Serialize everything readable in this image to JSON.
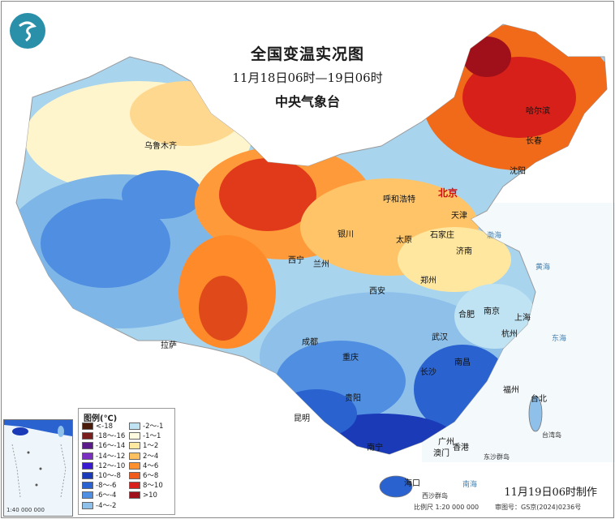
{
  "title": {
    "main": "全国变温实况图",
    "period": "11月18日06时—19日06时",
    "agency": "中央气象台"
  },
  "legend": {
    "title": "图例(℃)",
    "items": [
      {
        "label": "<-18",
        "color": "#4a1a0a"
      },
      {
        "label": "-18～-16",
        "color": "#7a1e1e"
      },
      {
        "label": "-16～-14",
        "color": "#5b1a8a"
      },
      {
        "label": "-14～-12",
        "color": "#7a2fc0"
      },
      {
        "label": "-12～-10",
        "color": "#3a1ad0"
      },
      {
        "label": "-10～-8",
        "color": "#1a3ab8"
      },
      {
        "label": "-8～-6",
        "color": "#2a62d0"
      },
      {
        "label": "-6～-4",
        "color": "#4f8ee0"
      },
      {
        "label": "-4～-2",
        "color": "#8ec0ea"
      },
      {
        "label": "-2～-1",
        "color": "#bfe3f2"
      },
      {
        "label": "-1～1",
        "color": "#fffbe0"
      },
      {
        "label": "1～2",
        "color": "#ffe8a0"
      },
      {
        "label": "2～4",
        "color": "#ffc060"
      },
      {
        "label": "4～6",
        "color": "#ff9030"
      },
      {
        "label": "6～8",
        "color": "#f05a1a"
      },
      {
        "label": "8～10",
        "color": "#d8201a"
      },
      {
        "label": ">10",
        "color": "#a0101a"
      }
    ]
  },
  "cities": {
    "beijing": "北京",
    "tianjin": "天津",
    "harbin": "哈尔滨",
    "changchun": "长春",
    "shenyang": "沈阳",
    "hohhot": "呼和浩特",
    "shijiazhuang": "石家庄",
    "taiyuan": "太原",
    "yinchuan": "银川",
    "xining": "西宁",
    "lanzhou": "兰州",
    "jinan": "济南",
    "zhengzhou": "郑州",
    "xian": "西安",
    "hefei": "合肥",
    "nanjing": "南京",
    "shanghai": "上海",
    "hangzhou": "杭州",
    "wuhan": "武汉",
    "nanchang": "南昌",
    "fuzhou": "福州",
    "taibei": "台北",
    "changsha": "长沙",
    "chengdu": "成都",
    "chongqing": "重庆",
    "guiyang": "贵阳",
    "kunming": "昆明",
    "nanning": "南宁",
    "guangzhou": "广州",
    "macau": "澳门",
    "hongkong": "香港",
    "haikou": "海口",
    "lhasa": "拉萨",
    "urumqi": "乌鲁木齐"
  },
  "minor_labels": {
    "taiwan_island": "台湾岛",
    "dongsha": "东沙群岛",
    "xisha": "西沙群岛"
  },
  "seas": {
    "bohai": "渤海",
    "yellow": "黄海",
    "east": "东海",
    "south": "南海"
  },
  "inset_label": "1:40 000 000",
  "footer": {
    "made": "11月19日06时制作",
    "scale": "比例尺 1:20 000 000",
    "review": "审图号：GS京(2024)0236号"
  }
}
